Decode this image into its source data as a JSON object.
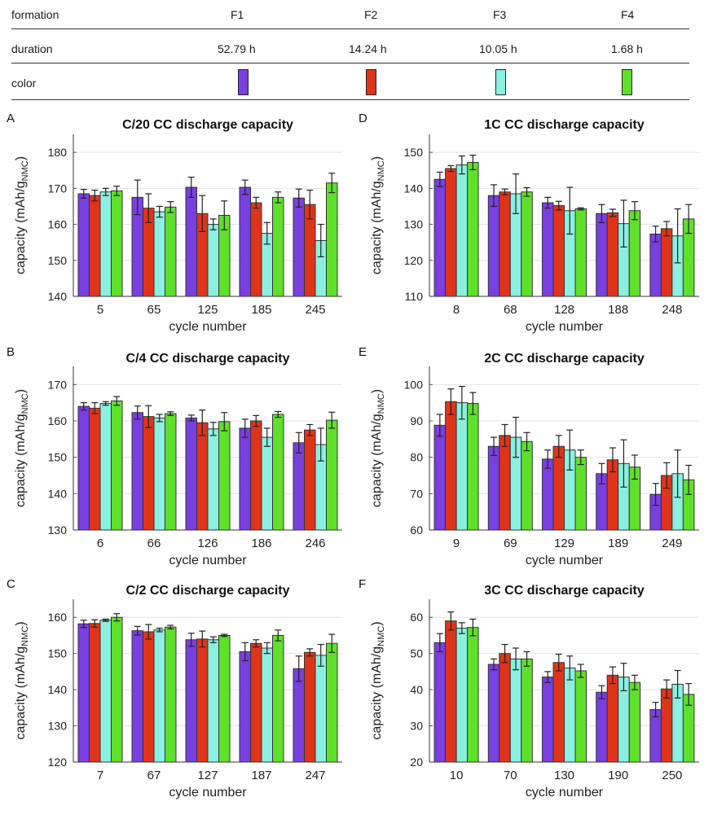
{
  "legend": {
    "formation_label": "formation",
    "duration_label": "duration",
    "color_label": "color",
    "formations": [
      {
        "name": "F1",
        "duration": "52.79 h",
        "color": "#7a3fe0"
      },
      {
        "name": "F2",
        "duration": "14.24 h",
        "color": "#e0341a"
      },
      {
        "name": "F3",
        "duration": "10.05 h",
        "color": "#8cf0e0"
      },
      {
        "name": "F4",
        "duration": "1.68 h",
        "color": "#5fe02a"
      }
    ]
  },
  "chart_data": [
    {
      "type": "bar",
      "panel": "A",
      "title": "C/20 CC discharge capacity",
      "xlabel": "cycle number",
      "ylabel": "capacity (mAh/g",
      "ylabel_sub": "NMC",
      "ylabel_end": ")",
      "ylim": [
        140,
        185
      ],
      "yticks": [
        140,
        150,
        160,
        170,
        180
      ],
      "categories": [
        "5",
        "65",
        "125",
        "185",
        "245"
      ],
      "series": [
        {
          "name": "F1",
          "values": [
            168.5,
            167.5,
            170.3,
            170.3,
            167.3
          ],
          "errors": [
            1.2,
            4.8,
            2.8,
            2.0,
            2.5
          ]
        },
        {
          "name": "F2",
          "values": [
            168.0,
            164.5,
            163.0,
            166.0,
            165.5
          ],
          "errors": [
            1.5,
            4.0,
            5.0,
            1.5,
            4.0
          ]
        },
        {
          "name": "F3",
          "values": [
            169.0,
            163.5,
            160.0,
            157.5,
            155.5
          ],
          "errors": [
            1.0,
            1.5,
            1.5,
            3.0,
            4.5
          ]
        },
        {
          "name": "F4",
          "values": [
            169.3,
            164.8,
            162.5,
            167.5,
            171.5
          ],
          "errors": [
            1.3,
            1.5,
            4.0,
            1.5,
            2.7
          ]
        }
      ]
    },
    {
      "type": "bar",
      "panel": "B",
      "title": "C/4 CC discharge capacity",
      "xlabel": "cycle number",
      "ylabel": "capacity (mAh/g",
      "ylabel_sub": "NMC",
      "ylabel_end": ")",
      "ylim": [
        130,
        175
      ],
      "yticks": [
        130,
        140,
        150,
        160,
        170
      ],
      "categories": [
        "6",
        "66",
        "126",
        "186",
        "246"
      ],
      "series": [
        {
          "name": "F1",
          "values": [
            164.0,
            162.3,
            160.8,
            158.0,
            154.0
          ],
          "errors": [
            1.0,
            1.8,
            0.8,
            2.5,
            2.8
          ]
        },
        {
          "name": "F2",
          "values": [
            163.5,
            161.2,
            159.5,
            160.0,
            157.5
          ],
          "errors": [
            1.5,
            3.0,
            3.5,
            1.5,
            1.5
          ]
        },
        {
          "name": "F3",
          "values": [
            164.8,
            160.8,
            157.8,
            155.5,
            153.5
          ],
          "errors": [
            0.5,
            1.0,
            1.8,
            2.5,
            4.5
          ]
        },
        {
          "name": "F4",
          "values": [
            165.5,
            162.0,
            159.8,
            161.8,
            160.2
          ],
          "errors": [
            1.2,
            0.5,
            2.5,
            0.8,
            2.2
          ]
        }
      ]
    },
    {
      "type": "bar",
      "panel": "C",
      "title": "C/2 CC discharge capacity",
      "xlabel": "cycle number",
      "ylabel": "capacity (mAh/g",
      "ylabel_sub": "NMC",
      "ylabel_end": ")",
      "ylim": [
        120,
        165
      ],
      "yticks": [
        120,
        130,
        140,
        150,
        160
      ],
      "categories": [
        "7",
        "67",
        "127",
        "187",
        "247"
      ],
      "series": [
        {
          "name": "F1",
          "values": [
            158.2,
            156.3,
            153.8,
            150.5,
            145.8
          ],
          "errors": [
            1.0,
            1.2,
            1.8,
            2.5,
            3.5
          ]
        },
        {
          "name": "F2",
          "values": [
            158.3,
            156.0,
            154.0,
            152.8,
            150.3
          ],
          "errors": [
            1.0,
            2.0,
            2.2,
            1.0,
            1.0
          ]
        },
        {
          "name": "F3",
          "values": [
            159.2,
            156.5,
            153.8,
            151.5,
            149.5
          ],
          "errors": [
            0.3,
            0.5,
            0.8,
            1.5,
            3.0
          ]
        },
        {
          "name": "F4",
          "values": [
            160.0,
            157.3,
            155.0,
            155.0,
            152.8
          ],
          "errors": [
            1.0,
            0.5,
            0.3,
            1.5,
            2.5
          ]
        }
      ]
    },
    {
      "type": "bar",
      "panel": "D",
      "title": "1C CC discharge capacity",
      "xlabel": "cycle number",
      "ylabel": "capacity (mAh/g",
      "ylabel_sub": "NMC",
      "ylabel_end": ")",
      "ylim": [
        110,
        155
      ],
      "yticks": [
        110,
        120,
        130,
        140,
        150
      ],
      "categories": [
        "8",
        "68",
        "128",
        "188",
        "248"
      ],
      "series": [
        {
          "name": "F1",
          "values": [
            142.5,
            138.0,
            136.0,
            133.0,
            127.3
          ],
          "errors": [
            2.0,
            3.0,
            1.5,
            2.5,
            2.2
          ]
        },
        {
          "name": "F2",
          "values": [
            145.5,
            139.0,
            135.2,
            133.2,
            128.8
          ],
          "errors": [
            0.8,
            0.8,
            1.2,
            1.0,
            2.0
          ]
        },
        {
          "name": "F3",
          "values": [
            146.5,
            138.5,
            133.8,
            130.2,
            126.8
          ],
          "errors": [
            2.5,
            5.5,
            6.5,
            6.5,
            7.5
          ]
        },
        {
          "name": "F4",
          "values": [
            147.2,
            139.0,
            134.3,
            133.8,
            131.5
          ],
          "errors": [
            2.0,
            1.2,
            0.3,
            2.5,
            4.0
          ]
        }
      ]
    },
    {
      "type": "bar",
      "panel": "E",
      "title": "2C CC discharge capacity",
      "xlabel": "cycle number",
      "ylabel": "capacity (mAh/g",
      "ylabel_sub": "NMC",
      "ylabel_end": ")",
      "ylim": [
        60,
        105
      ],
      "yticks": [
        60,
        70,
        80,
        90,
        100
      ],
      "categories": [
        "9",
        "69",
        "129",
        "189",
        "249"
      ],
      "series": [
        {
          "name": "F1",
          "values": [
            88.8,
            83.0,
            79.5,
            75.5,
            69.8
          ],
          "errors": [
            3.0,
            2.5,
            2.5,
            2.8,
            3.0
          ]
        },
        {
          "name": "F2",
          "values": [
            95.3,
            86.0,
            83.0,
            79.3,
            75.0
          ],
          "errors": [
            3.5,
            3.0,
            3.0,
            3.3,
            3.5
          ]
        },
        {
          "name": "F3",
          "values": [
            95.0,
            85.5,
            82.0,
            78.3,
            75.5
          ],
          "errors": [
            4.5,
            5.5,
            5.5,
            6.5,
            6.5
          ]
        },
        {
          "name": "F4",
          "values": [
            94.8,
            84.3,
            80.0,
            77.3,
            73.8
          ],
          "errors": [
            3.0,
            2.5,
            2.0,
            3.3,
            4.0
          ]
        }
      ]
    },
    {
      "type": "bar",
      "panel": "F",
      "title": "3C CC discharge capacity",
      "xlabel": "cycle number",
      "ylabel": "capacity (mAh/g",
      "ylabel_sub": "NMC",
      "ylabel_end": ")",
      "ylim": [
        20,
        65
      ],
      "yticks": [
        20,
        30,
        40,
        50,
        60
      ],
      "categories": [
        "10",
        "70",
        "130",
        "190",
        "250"
      ],
      "series": [
        {
          "name": "F1",
          "values": [
            53.0,
            47.0,
            43.5,
            39.3,
            34.5
          ],
          "errors": [
            2.5,
            1.5,
            1.5,
            1.8,
            2.0
          ]
        },
        {
          "name": "F2",
          "values": [
            59.0,
            50.0,
            47.5,
            44.0,
            40.2
          ],
          "errors": [
            2.5,
            2.5,
            2.3,
            2.3,
            2.5
          ]
        },
        {
          "name": "F3",
          "values": [
            57.0,
            48.5,
            46.0,
            43.5,
            41.5
          ],
          "errors": [
            1.5,
            3.0,
            3.3,
            3.8,
            3.8
          ]
        },
        {
          "name": "F4",
          "values": [
            57.2,
            48.5,
            45.2,
            42.0,
            38.7
          ],
          "errors": [
            2.3,
            2.0,
            1.8,
            2.0,
            3.0
          ]
        }
      ]
    }
  ]
}
